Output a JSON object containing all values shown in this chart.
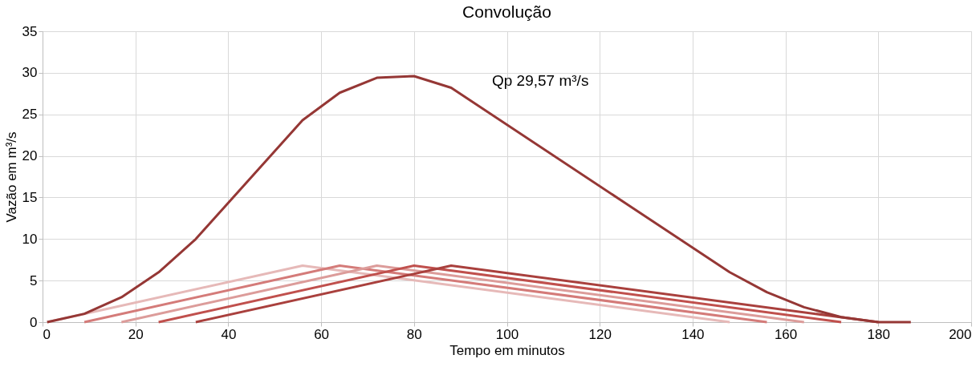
{
  "chart_data": {
    "type": "line",
    "title": "Convolução",
    "xlabel": "Tempo em minutos",
    "ylabel": "Vazão em m³/s",
    "series": [
      {
        "color": "#e6b9b8",
        "x": [
          1,
          56,
          148
        ],
        "values": [
          0,
          6.8,
          0
        ]
      },
      {
        "color": "#d47b79",
        "x": [
          9,
          64,
          156
        ],
        "values": [
          0,
          6.8,
          0
        ]
      },
      {
        "color": "#dc9c9a",
        "x": [
          17,
          72,
          164
        ],
        "values": [
          0,
          6.8,
          0
        ]
      },
      {
        "color": "#c0504d",
        "x": [
          25,
          80,
          172
        ],
        "values": [
          0,
          6.8,
          0
        ]
      },
      {
        "color": "#a9403d",
        "x": [
          33,
          88,
          180
        ],
        "values": [
          0,
          6.8,
          0
        ]
      },
      {
        "color": "#953735",
        "x": [
          1,
          9,
          17,
          25,
          33,
          56,
          64,
          72,
          80,
          88,
          148,
          156,
          164,
          172,
          180,
          187
        ],
        "values": [
          0,
          1,
          3,
          6,
          10,
          24.3,
          27.6,
          29.4,
          29.6,
          28.2,
          6,
          3.6,
          1.8,
          0.6,
          0,
          0
        ]
      }
    ],
    "annotations": [
      "Qp 29,57 m³/s"
    ],
    "xlim": [
      0,
      200
    ],
    "xticks": [
      0,
      20,
      40,
      60,
      80,
      100,
      120,
      140,
      160,
      180,
      200
    ],
    "ylim": [
      0,
      35
    ],
    "yticks": [
      0,
      5,
      10,
      15,
      20,
      25,
      30,
      35
    ],
    "grid": true,
    "marker": "none",
    "line_style": "solid"
  }
}
